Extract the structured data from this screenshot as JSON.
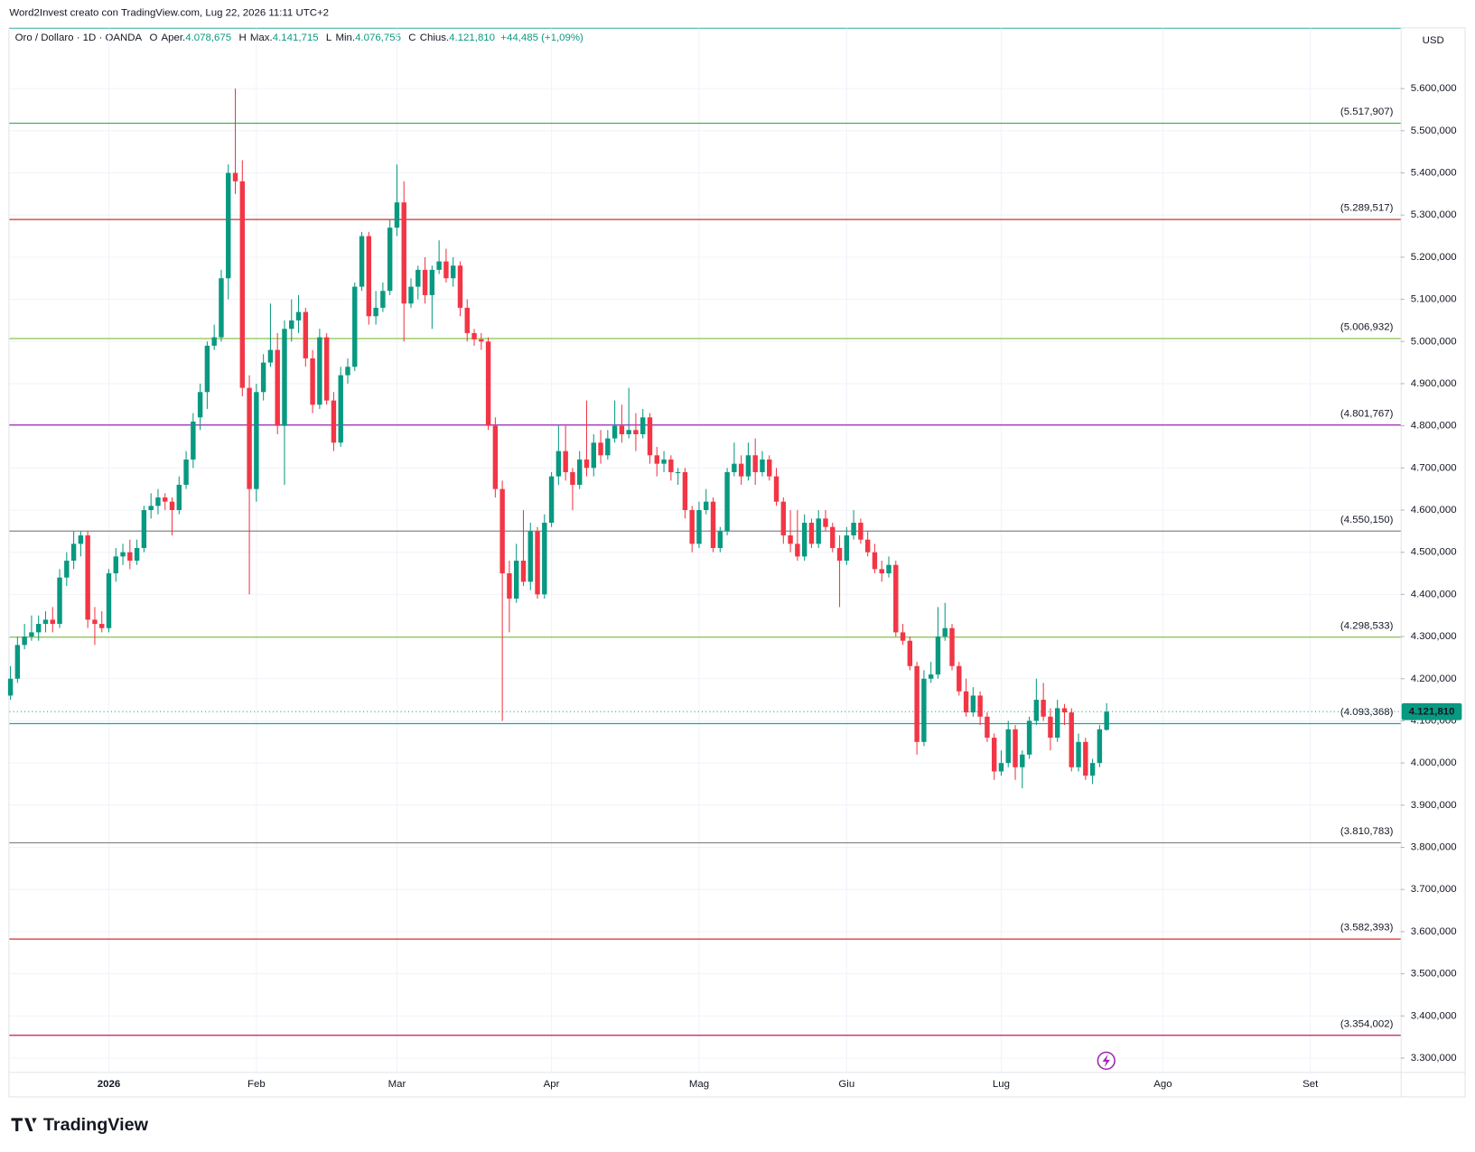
{
  "attribution": "Word2Invest creato con TradingView.com, Lug 22, 2026 11:11 UTC+2",
  "symbol": "Oro / Dollaro · 1D · OANDA",
  "ohlc_legend": [
    {
      "key": "O",
      "name": "Aper.",
      "value": "4.078,675"
    },
    {
      "key": "H",
      "name": "Max.",
      "value": "4.141,715"
    },
    {
      "key": "L",
      "name": "Min.",
      "value": "4.076,755"
    },
    {
      "key": "C",
      "name": "Chius.",
      "value": "4.121,810"
    }
  ],
  "change": "+44,485 (+1,09%)",
  "currency": "USD",
  "brand": "TradingView",
  "chart_data": {
    "type": "candlestick",
    "up_color": "#089981",
    "down_color": "#f23645",
    "grid": true,
    "xlim": [
      -0.15,
      197.85
    ],
    "xticks": [
      {
        "value": 14,
        "label": "2026"
      },
      {
        "value": 35,
        "label": "Feb"
      },
      {
        "value": 55,
        "label": "Mar"
      },
      {
        "value": 77,
        "label": "Apr"
      },
      {
        "value": 98,
        "label": "Mag"
      },
      {
        "value": 119,
        "label": "Giu"
      },
      {
        "value": 141,
        "label": "Lug"
      },
      {
        "value": 164,
        "label": "Ago"
      },
      {
        "value": 185,
        "label": "Set"
      }
    ],
    "ylim": [
      3267,
      5743
    ],
    "yticks": [
      {
        "value": 3300,
        "label": "3.300,000"
      },
      {
        "value": 3400,
        "label": "3.400,000"
      },
      {
        "value": 3500,
        "label": "3.500,000"
      },
      {
        "value": 3600,
        "label": "3.600,000"
      },
      {
        "value": 3700,
        "label": "3.700,000"
      },
      {
        "value": 3800,
        "label": "3.800,000"
      },
      {
        "value": 3900,
        "label": "3.900,000"
      },
      {
        "value": 4000,
        "label": "4.000,000"
      },
      {
        "value": 4100,
        "label": "4.100,000"
      },
      {
        "value": 4200,
        "label": "4.200,000"
      },
      {
        "value": 4300,
        "label": "4.300,000"
      },
      {
        "value": 4400,
        "label": "4.400,000"
      },
      {
        "value": 4500,
        "label": "4.500,000"
      },
      {
        "value": 4600,
        "label": "4.600,000"
      },
      {
        "value": 4700,
        "label": "4.700,000"
      },
      {
        "value": 4800,
        "label": "4.800,000"
      },
      {
        "value": 4900,
        "label": "4.900,000"
      },
      {
        "value": 5000,
        "label": "5.000,000"
      },
      {
        "value": 5100,
        "label": "5.100,000"
      },
      {
        "value": 5200,
        "label": "5.200,000"
      },
      {
        "value": 5300,
        "label": "5.300,000"
      },
      {
        "value": 5400,
        "label": "5.400,000"
      },
      {
        "value": 5500,
        "label": "5.500,000"
      },
      {
        "value": 5600,
        "label": "5.600,000"
      }
    ],
    "levels": [
      {
        "value": 5517.907,
        "label": "(5.517,907)",
        "color": "#4caf50"
      },
      {
        "value": 5289.517,
        "label": "(5.289,517)",
        "color": "#d32f2f"
      },
      {
        "value": 5006.932,
        "label": "(5.006,932)",
        "color": "#8bc34a"
      },
      {
        "value": 4801.767,
        "label": "(4.801,767)",
        "color": "#9c27b0"
      },
      {
        "value": 4550.15,
        "label": "(4.550,150)",
        "color": "#888888"
      },
      {
        "value": 4298.533,
        "label": "(4.298,533)",
        "color": "#8bc34a"
      },
      {
        "value": 4093.368,
        "label": "(4.093,368)",
        "color": "#26a69a"
      },
      {
        "value": 3810.783,
        "label": "(3.810,783)",
        "color": "#888888"
      },
      {
        "value": 3582.393,
        "label": "(3.582,393)",
        "color": "#d32f2f"
      },
      {
        "value": 3354.002,
        "label": "(3.354,002)",
        "color": "#c2185b"
      }
    ],
    "last_price": {
      "value": 4121.81,
      "label": "4.121,810",
      "color": "#089981"
    },
    "ohlc": [
      [
        4160,
        4230,
        4150,
        4200
      ],
      [
        4200,
        4300,
        4190,
        4280
      ],
      [
        4280,
        4330,
        4270,
        4300
      ],
      [
        4300,
        4350,
        4290,
        4310
      ],
      [
        4310,
        4350,
        4290,
        4330
      ],
      [
        4330,
        4360,
        4310,
        4340
      ],
      [
        4340,
        4370,
        4310,
        4330
      ],
      [
        4330,
        4460,
        4320,
        4440
      ],
      [
        4440,
        4500,
        4420,
        4480
      ],
      [
        4480,
        4550,
        4460,
        4520
      ],
      [
        4520,
        4550,
        4490,
        4540
      ],
      [
        4540,
        4550,
        4320,
        4340
      ],
      [
        4340,
        4370,
        4280,
        4330
      ],
      [
        4330,
        4360,
        4310,
        4320
      ],
      [
        4320,
        4460,
        4310,
        4450
      ],
      [
        4450,
        4510,
        4430,
        4490
      ],
      [
        4490,
        4520,
        4470,
        4500
      ],
      [
        4500,
        4530,
        4460,
        4480
      ],
      [
        4480,
        4530,
        4470,
        4510
      ],
      [
        4510,
        4610,
        4500,
        4600
      ],
      [
        4600,
        4640,
        4580,
        4610
      ],
      [
        4610,
        4650,
        4590,
        4630
      ],
      [
        4630,
        4640,
        4600,
        4620
      ],
      [
        4620,
        4630,
        4540,
        4600
      ],
      [
        4600,
        4680,
        4590,
        4660
      ],
      [
        4660,
        4740,
        4650,
        4720
      ],
      [
        4720,
        4830,
        4700,
        4810
      ],
      [
        4820,
        4900,
        4790,
        4880
      ],
      [
        4880,
        5000,
        4840,
        4990
      ],
      [
        4990,
        5040,
        4980,
        5010
      ],
      [
        5010,
        5170,
        5000,
        5150
      ],
      [
        5150,
        5420,
        5100,
        5400
      ],
      [
        5400,
        5600,
        5350,
        5380
      ],
      [
        5380,
        5430,
        4870,
        4890
      ],
      [
        4890,
        4920,
        4400,
        4650
      ],
      [
        4650,
        4900,
        4620,
        4880
      ],
      [
        4880,
        4970,
        4860,
        4950
      ],
      [
        4950,
        5090,
        4940,
        4980
      ],
      [
        4980,
        5020,
        4780,
        4800
      ],
      [
        4800,
        5050,
        4660,
        5030
      ],
      [
        5030,
        5100,
        5000,
        5050
      ],
      [
        5050,
        5110,
        5020,
        5070
      ],
      [
        5070,
        5080,
        4940,
        4960
      ],
      [
        4960,
        4980,
        4830,
        4850
      ],
      [
        4850,
        5030,
        4840,
        5010
      ],
      [
        5010,
        5020,
        4850,
        4860
      ],
      [
        4860,
        4880,
        4740,
        4760
      ],
      [
        4760,
        4940,
        4750,
        4920
      ],
      [
        4920,
        4960,
        4900,
        4940
      ],
      [
        4940,
        5140,
        4930,
        5130
      ],
      [
        5130,
        5260,
        5120,
        5250
      ],
      [
        5250,
        5260,
        5040,
        5060
      ],
      [
        5060,
        5120,
        5040,
        5080
      ],
      [
        5080,
        5140,
        5070,
        5120
      ],
      [
        5120,
        5290,
        5110,
        5270
      ],
      [
        5270,
        5420,
        5250,
        5330
      ],
      [
        5330,
        5380,
        5000,
        5090
      ],
      [
        5090,
        5150,
        5080,
        5130
      ],
      [
        5130,
        5180,
        5100,
        5170
      ],
      [
        5170,
        5200,
        5090,
        5110
      ],
      [
        5110,
        5180,
        5030,
        5170
      ],
      [
        5170,
        5240,
        5160,
        5190
      ],
      [
        5190,
        5220,
        5140,
        5150
      ],
      [
        5150,
        5200,
        5130,
        5180
      ],
      [
        5180,
        5190,
        5060,
        5080
      ],
      [
        5080,
        5100,
        5000,
        5020
      ],
      [
        5020,
        5030,
        4990,
        5005
      ],
      [
        5005,
        5020,
        4980,
        5000
      ],
      [
        5000,
        5010,
        4790,
        4800
      ],
      [
        4800,
        4820,
        4630,
        4650
      ],
      [
        4650,
        4670,
        4100,
        4450
      ],
      [
        4450,
        4480,
        4310,
        4390
      ],
      [
        4390,
        4520,
        4380,
        4480
      ],
      [
        4480,
        4600,
        4420,
        4430
      ],
      [
        4430,
        4570,
        4410,
        4550
      ],
      [
        4550,
        4560,
        4390,
        4400
      ],
      [
        4400,
        4590,
        4390,
        4570
      ],
      [
        4570,
        4690,
        4560,
        4680
      ],
      [
        4680,
        4800,
        4660,
        4740
      ],
      [
        4740,
        4800,
        4670,
        4690
      ],
      [
        4690,
        4700,
        4600,
        4660
      ],
      [
        4660,
        4740,
        4650,
        4720
      ],
      [
        4720,
        4860,
        4680,
        4700
      ],
      [
        4700,
        4780,
        4680,
        4760
      ],
      [
        4760,
        4790,
        4710,
        4730
      ],
      [
        4730,
        4790,
        4720,
        4770
      ],
      [
        4770,
        4860,
        4760,
        4800
      ],
      [
        4800,
        4850,
        4760,
        4780
      ],
      [
        4780,
        4890,
        4770,
        4790
      ],
      [
        4790,
        4830,
        4740,
        4780
      ],
      [
        4780,
        4840,
        4770,
        4820
      ],
      [
        4820,
        4830,
        4710,
        4730
      ],
      [
        4730,
        4750,
        4680,
        4710
      ],
      [
        4710,
        4740,
        4690,
        4720
      ],
      [
        4720,
        4730,
        4670,
        4690
      ],
      [
        4690,
        4700,
        4660,
        4690
      ],
      [
        4690,
        4700,
        4580,
        4600
      ],
      [
        4600,
        4610,
        4500,
        4520
      ],
      [
        4520,
        4620,
        4510,
        4600
      ],
      [
        4600,
        4650,
        4590,
        4620
      ],
      [
        4620,
        4630,
        4500,
        4510
      ],
      [
        4510,
        4560,
        4500,
        4550
      ],
      [
        4550,
        4700,
        4540,
        4690
      ],
      [
        4690,
        4760,
        4680,
        4710
      ],
      [
        4710,
        4730,
        4660,
        4680
      ],
      [
        4680,
        4760,
        4670,
        4730
      ],
      [
        4730,
        4770,
        4660,
        4690
      ],
      [
        4690,
        4740,
        4680,
        4720
      ],
      [
        4720,
        4730,
        4670,
        4680
      ],
      [
        4680,
        4700,
        4610,
        4620
      ],
      [
        4620,
        4630,
        4520,
        4540
      ],
      [
        4540,
        4600,
        4500,
        4520
      ],
      [
        4520,
        4600,
        4480,
        4490
      ],
      [
        4490,
        4590,
        4480,
        4570
      ],
      [
        4570,
        4580,
        4510,
        4520
      ],
      [
        4520,
        4600,
        4510,
        4580
      ],
      [
        4580,
        4600,
        4550,
        4560
      ],
      [
        4560,
        4570,
        4500,
        4510
      ],
      [
        4510,
        4540,
        4370,
        4480
      ],
      [
        4480,
        4560,
        4470,
        4540
      ],
      [
        4540,
        4600,
        4530,
        4570
      ],
      [
        4570,
        4580,
        4520,
        4530
      ],
      [
        4530,
        4550,
        4490,
        4500
      ],
      [
        4500,
        4520,
        4450,
        4460
      ],
      [
        4460,
        4480,
        4430,
        4450
      ],
      [
        4450,
        4490,
        4440,
        4470
      ],
      [
        4470,
        4480,
        4300,
        4310
      ],
      [
        4310,
        4330,
        4280,
        4290
      ],
      [
        4290,
        4300,
        4220,
        4230
      ],
      [
        4230,
        4240,
        4020,
        4050
      ],
      [
        4050,
        4220,
        4040,
        4200
      ],
      [
        4200,
        4240,
        4190,
        4210
      ],
      [
        4210,
        4370,
        4200,
        4300
      ],
      [
        4300,
        4380,
        4290,
        4320
      ],
      [
        4320,
        4330,
        4220,
        4230
      ],
      [
        4230,
        4240,
        4160,
        4170
      ],
      [
        4170,
        4200,
        4110,
        4120
      ],
      [
        4120,
        4180,
        4110,
        4160
      ],
      [
        4160,
        4170,
        4090,
        4110
      ],
      [
        4110,
        4120,
        4050,
        4060
      ],
      [
        4060,
        4070,
        3960,
        3980
      ],
      [
        3980,
        4030,
        3970,
        4000
      ],
      [
        4000,
        4100,
        3990,
        4080
      ],
      [
        4080,
        4090,
        3960,
        3990
      ],
      [
        3990,
        4030,
        3940,
        4020
      ],
      [
        4020,
        4110,
        4010,
        4100
      ],
      [
        4100,
        4200,
        4090,
        4150
      ],
      [
        4150,
        4190,
        4100,
        4110
      ],
      [
        4110,
        4130,
        4030,
        4060
      ],
      [
        4060,
        4150,
        4050,
        4130
      ],
      [
        4130,
        4140,
        4090,
        4120
      ],
      [
        4120,
        4130,
        3980,
        3990
      ],
      [
        3990,
        4070,
        3980,
        4050
      ],
      [
        4050,
        4060,
        3960,
        3970
      ],
      [
        3970,
        4010,
        3950,
        4000
      ],
      [
        4000,
        4090,
        3990,
        4080
      ],
      [
        4078.675,
        4141.715,
        4076.755,
        4121.81
      ]
    ]
  }
}
